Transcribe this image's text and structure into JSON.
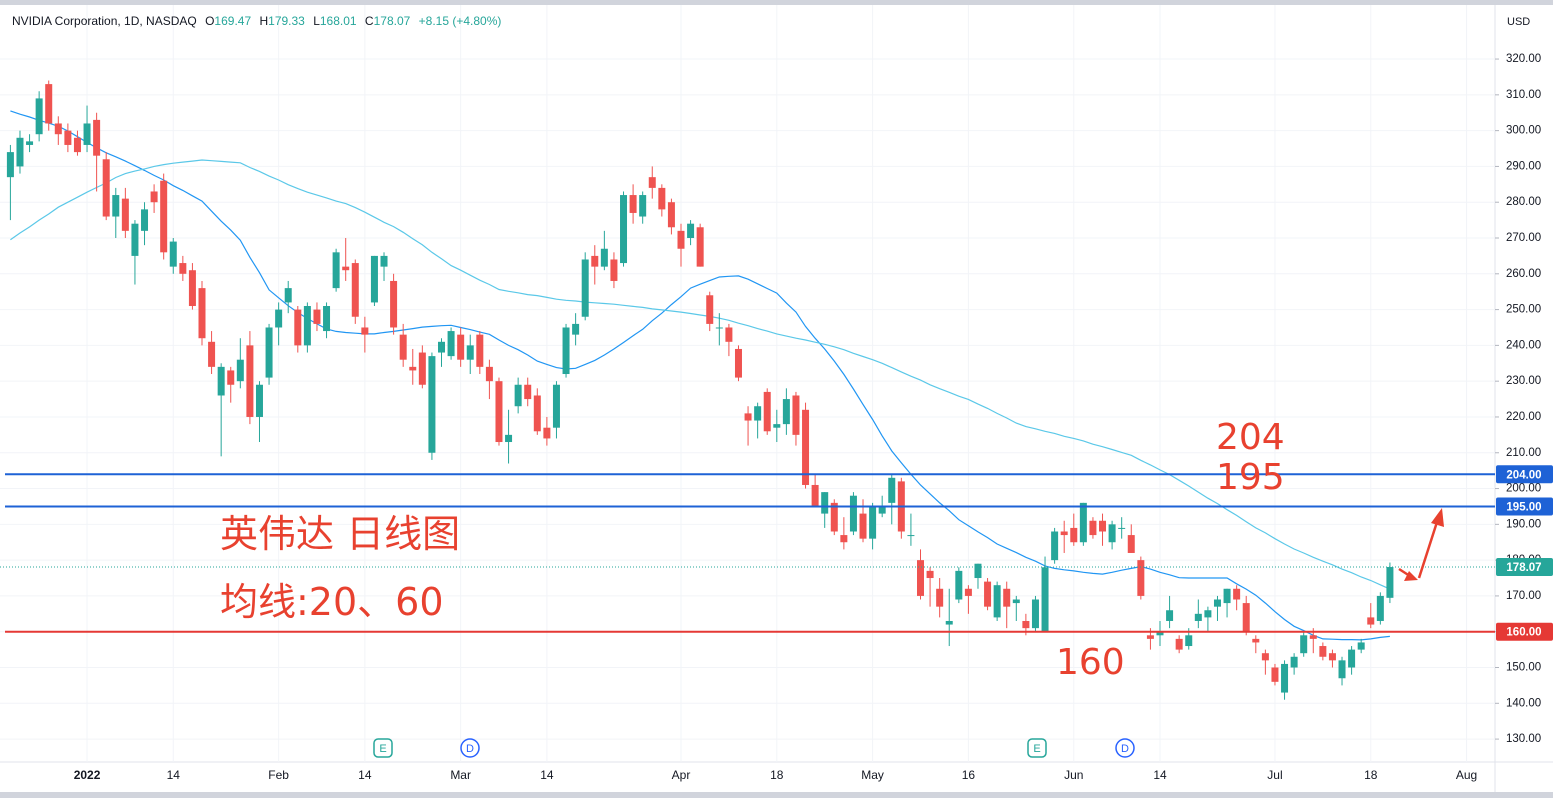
{
  "chart_data": {
    "type": "candlestick",
    "header": {
      "symbol": "NVIDIA Corporation, 1D, NASDAQ",
      "ohlc": [
        "O",
        "169.47",
        "H",
        "179.33",
        "L",
        "168.01",
        "C",
        "178.07"
      ],
      "change": "+8.15 (+4.80%)"
    },
    "currency": "USD",
    "categories": [
      null,
      null,
      null,
      null,
      null,
      null,
      null,
      null,
      "2022",
      null,
      null,
      null,
      null,
      null,
      null,
      null,
      null,
      "14",
      null,
      null,
      null,
      null,
      null,
      null,
      null,
      null,
      null,
      null,
      "Feb",
      null,
      null,
      null,
      null,
      null,
      null,
      null,
      null,
      "14",
      null,
      null,
      null,
      null,
      null,
      null,
      null,
      null,
      null,
      "Mar",
      null,
      null,
      null,
      null,
      null,
      null,
      null,
      null,
      "14",
      null,
      null,
      null,
      null,
      null,
      null,
      null,
      null,
      null,
      null,
      null,
      null,
      null,
      "Apr",
      null,
      null,
      null,
      null,
      null,
      null,
      null,
      null,
      null,
      "18",
      null,
      null,
      null,
      null,
      null,
      null,
      null,
      null,
      null,
      "May",
      null,
      null,
      null,
      null,
      null,
      null,
      null,
      null,
      null,
      "16",
      null,
      null,
      null,
      null,
      null,
      null,
      null,
      null,
      null,
      null,
      "Jun",
      null,
      null,
      null,
      null,
      null,
      null,
      null,
      null,
      "14",
      null,
      null,
      null,
      null,
      null,
      null,
      null,
      null,
      null,
      null,
      null,
      "Jul",
      null,
      null,
      null,
      null,
      null,
      null,
      null,
      null,
      null,
      "18",
      null,
      null,
      null,
      null,
      null,
      null,
      null,
      null,
      null,
      "Aug"
    ],
    "open": [
      287,
      290,
      296,
      299,
      313,
      302,
      300,
      298,
      296,
      303,
      292,
      276,
      281,
      265,
      272,
      283,
      286,
      262,
      263,
      261,
      256,
      241,
      226,
      233,
      230,
      240,
      220,
      231,
      245,
      252,
      250,
      240,
      250,
      244,
      256,
      262,
      263,
      245,
      252,
      262,
      258,
      243,
      234,
      238,
      210,
      238,
      237,
      243,
      236,
      243,
      234,
      230,
      213,
      223,
      229,
      226,
      217,
      217,
      232,
      243,
      248,
      265,
      262,
      264,
      263,
      282,
      276,
      287,
      284,
      280,
      272,
      270,
      273,
      254,
      245,
      245,
      239,
      221,
      219,
      227,
      217,
      218,
      226,
      222,
      201,
      193,
      196,
      187,
      188,
      193,
      186,
      193,
      196,
      202,
      187,
      180,
      177,
      172,
      162,
      169,
      172,
      175,
      174,
      164,
      172,
      168,
      163,
      161,
      160,
      180,
      188,
      189,
      185,
      191,
      191,
      185,
      189,
      187,
      180,
      159,
      159,
      163,
      158,
      156,
      163,
      164,
      167,
      168,
      172,
      168,
      158,
      154,
      150,
      143,
      150,
      154,
      159,
      156,
      154,
      147,
      150,
      155,
      164,
      163,
      169.47,
      null,
      null,
      null,
      null,
      null,
      null,
      null,
      null
    ],
    "high": [
      296,
      300,
      299,
      311,
      314,
      304,
      302,
      300,
      307,
      305,
      294,
      284,
      284,
      275,
      280,
      285,
      288,
      270,
      265,
      263,
      258,
      244,
      235,
      234,
      242,
      244,
      230,
      246,
      252,
      258,
      251,
      252,
      252,
      252,
      267,
      270,
      264,
      248,
      265,
      266,
      260,
      246,
      239,
      240,
      238,
      242,
      245,
      245,
      243,
      244,
      236,
      231,
      222,
      231,
      231,
      228,
      220,
      230,
      246,
      249,
      266,
      268,
      272,
      266,
      283,
      285,
      283,
      290,
      285,
      281,
      274,
      275,
      274,
      255,
      249,
      246,
      240,
      223,
      224,
      228,
      222,
      228,
      227,
      224,
      204,
      199,
      197,
      192,
      199,
      197,
      196,
      198,
      204,
      203,
      193,
      183,
      178,
      175,
      172,
      178,
      173,
      179,
      175,
      174,
      174,
      170,
      165,
      170,
      181,
      189,
      191,
      193,
      196,
      192,
      193,
      191,
      192,
      190,
      181,
      161,
      163,
      170,
      159,
      161,
      169,
      167,
      170,
      172,
      173,
      170,
      159,
      155,
      151,
      152,
      154,
      160,
      161,
      157,
      155,
      153,
      156,
      158,
      168,
      171,
      179.33,
      null,
      null,
      null,
      null,
      null,
      null,
      null,
      null
    ],
    "low": [
      275,
      288,
      294,
      297,
      300,
      296,
      294,
      293,
      294,
      283,
      275,
      270,
      270,
      257,
      268,
      277,
      264,
      260,
      258,
      250,
      240,
      232,
      209,
      224,
      228,
      218,
      213,
      229,
      240,
      249,
      238,
      238,
      244,
      242,
      255,
      258,
      246,
      238,
      251,
      258,
      243,
      234,
      229,
      228,
      208,
      234,
      236,
      234,
      232,
      232,
      225,
      212,
      207,
      221,
      223,
      215,
      212,
      214,
      231,
      240,
      247,
      257,
      261,
      256,
      262,
      274,
      274,
      281,
      276,
      271,
      262,
      268,
      262,
      244,
      240,
      237,
      230,
      212,
      214,
      215,
      213,
      215,
      212,
      200,
      195,
      189,
      187,
      183,
      187,
      185,
      183,
      192,
      190,
      186,
      184,
      169,
      167,
      164,
      156,
      168,
      165,
      172,
      166,
      163,
      161,
      163,
      159,
      160,
      160,
      179,
      182,
      184,
      184,
      186,
      184,
      183,
      186,
      182,
      169,
      155,
      156,
      161,
      154,
      155,
      161,
      160,
      163,
      164,
      166,
      159,
      154,
      148,
      145,
      141,
      148,
      153,
      154,
      152,
      150,
      145,
      148,
      154,
      161,
      162,
      168.01,
      null,
      null,
      null,
      null,
      null,
      null,
      null,
      null
    ],
    "close": [
      294,
      298,
      297,
      309,
      302,
      299,
      296,
      294,
      302,
      293,
      276,
      282,
      272,
      274,
      278,
      280,
      266,
      269,
      260,
      251,
      242,
      234,
      234,
      229,
      236,
      220,
      229,
      245,
      250,
      256,
      240,
      251,
      246,
      251,
      266,
      261,
      248,
      243,
      265,
      265,
      245,
      236,
      233,
      229,
      237,
      241,
      244,
      236,
      240,
      234,
      230,
      213,
      215,
      229,
      225,
      216,
      214,
      229,
      245,
      246,
      264,
      262,
      267,
      258,
      282,
      277,
      282,
      284,
      278,
      273,
      267,
      274,
      262,
      246,
      245,
      241,
      231,
      219,
      223,
      216,
      218,
      225,
      215,
      201,
      195,
      199,
      188,
      185,
      198,
      186,
      195,
      195,
      203,
      188,
      187,
      170,
      175,
      167,
      163,
      177,
      170,
      179,
      167,
      173,
      167,
      169,
      161,
      169,
      178,
      188,
      187,
      185,
      196,
      187,
      188,
      190,
      189,
      182,
      170,
      158,
      160,
      166,
      155,
      159,
      165,
      166,
      169,
      172,
      169,
      160,
      157,
      152,
      146,
      151,
      153,
      159,
      158,
      153,
      152,
      152,
      155,
      157,
      162,
      170,
      178.07,
      null,
      null,
      null,
      null,
      null,
      null,
      null,
      null
    ],
    "up_color": "#26a69a",
    "down_color": "#ef5350",
    "moving_averages": [
      {
        "color": "#2196f3",
        "values": [
          305.5,
          304.6,
          303.8,
          302.9,
          302.1,
          301.2,
          299.9,
          298.3,
          296.7,
          295.2,
          293.8,
          292.7,
          291.5,
          290.2,
          288.9,
          287.5,
          286.2,
          284.6,
          283.3,
          281.8,
          280.3,
          277.5,
          274.7,
          272.2,
          269.4,
          264.6,
          260.3,
          255.5,
          253.3,
          251.1,
          249.2,
          247.5,
          246,
          244.6,
          243.9,
          243.6,
          243.4,
          243.2,
          243.2,
          243.6,
          243.9,
          244.3,
          244.7,
          245.1,
          245.3,
          245.5,
          245.6,
          245,
          244.4,
          243.7,
          243.1,
          241.5,
          240,
          238.8,
          237.3,
          235.6,
          234.7,
          233.8,
          233.4,
          233.6,
          234.7,
          235.8,
          237.3,
          239,
          240.8,
          242.7,
          244.5,
          246.9,
          249,
          251.4,
          253.6,
          256,
          257.1,
          258.1,
          259.1,
          259.3,
          259.4,
          258.5,
          257.2,
          255.9,
          254.6,
          251.8,
          249.3,
          245.3,
          242,
          239,
          235.6,
          231.9,
          227.8,
          223.5,
          219.3,
          214.7,
          210.5,
          207.2,
          204,
          201,
          198.5,
          196,
          193.8,
          191.3,
          189.6,
          187.9,
          186.3,
          184.5,
          183.3,
          182.1,
          180.8,
          179.7,
          178.4,
          177.7,
          177.3,
          177,
          176.6,
          176.3,
          176.1,
          176.6,
          177.2,
          177.7,
          178.2,
          177.5,
          176.6,
          175.9,
          175.1,
          175,
          175,
          175,
          175,
          175,
          173.4,
          171.9,
          170.2,
          168,
          165.6,
          163.4,
          161.5,
          160.3,
          159,
          158,
          157.9,
          157.8,
          157.8,
          157.7,
          158,
          158.4,
          158.7,
          null,
          null,
          null,
          null,
          null,
          null,
          null,
          null
        ]
      },
      {
        "color": "#5bc8e8",
        "values": [
          269.5,
          271.4,
          273.1,
          275,
          276.7,
          278.6,
          280,
          281.4,
          282.8,
          284.1,
          285.4,
          286.9,
          288,
          288.7,
          289.3,
          290,
          290.5,
          290.9,
          291.2,
          291.5,
          291.8,
          291.6,
          291.4,
          291.2,
          291,
          289.7,
          288.6,
          287.3,
          286.2,
          284.9,
          283.8,
          282.8,
          282,
          281.2,
          280.3,
          279.6,
          278.5,
          277.2,
          275.8,
          274.4,
          273.2,
          271.6,
          269.8,
          268.1,
          266,
          264.2,
          262.3,
          261,
          259.6,
          258.2,
          257,
          255.6,
          255.1,
          254.7,
          254.2,
          253.9,
          253.4,
          252.9,
          252.6,
          252.4,
          252.1,
          251.9,
          251.7,
          251.5,
          251.2,
          250.9,
          250.6,
          250.2,
          249.9,
          249.6,
          249.3,
          248.9,
          248.5,
          248.1,
          247.6,
          247,
          246.2,
          245.5,
          244.7,
          244,
          243.2,
          242.6,
          242,
          241.5,
          240.9,
          240.3,
          239.6,
          238.8,
          237.8,
          236.9,
          236,
          235,
          233.8,
          232.6,
          231.4,
          230.3,
          229,
          227.9,
          226.9,
          225.8,
          224.9,
          223.6,
          222.4,
          221,
          219.7,
          218.3,
          217.3,
          216.7,
          216,
          215.4,
          214.6,
          214,
          213.3,
          212.4,
          211.7,
          210.9,
          210.1,
          209.3,
          207.9,
          206.6,
          205.2,
          203.9,
          202.3,
          200.7,
          199,
          197.3,
          195.8,
          194.1,
          192.5,
          190.7,
          189,
          187.6,
          186,
          184.5,
          183.1,
          182,
          180.8,
          179.7,
          178.7,
          177.5,
          176.5,
          175.3,
          174.3,
          173.1,
          171.9,
          null,
          null,
          null,
          null,
          null,
          null,
          null,
          null
        ]
      }
    ],
    "ylim": [
      123.6,
      335.1
    ],
    "yticks": [
      {
        "value": 130,
        "label": "130.00"
      },
      {
        "value": 140,
        "label": "140.00"
      },
      {
        "value": 150,
        "label": "150.00"
      },
      {
        "value": 160,
        "label": "160.00"
      },
      {
        "value": 170,
        "label": "170.00"
      },
      {
        "value": 180,
        "label": "180.00"
      },
      {
        "value": 190,
        "label": "190.00"
      },
      {
        "value": 200,
        "label": "200.00"
      },
      {
        "value": 210,
        "label": "210.00"
      },
      {
        "value": 220,
        "label": "220.00"
      },
      {
        "value": 230,
        "label": "230.00"
      },
      {
        "value": 240,
        "label": "240.00"
      },
      {
        "value": 250,
        "label": "250.00"
      },
      {
        "value": 260,
        "label": "260.00"
      },
      {
        "value": 270,
        "label": "270.00"
      },
      {
        "value": 280,
        "label": "280.00"
      },
      {
        "value": 290,
        "label": "290.00"
      },
      {
        "value": 300,
        "label": "300.00"
      },
      {
        "value": 310,
        "label": "310.00"
      },
      {
        "value": 320,
        "label": "320.00"
      }
    ],
    "grid": true,
    "levels": [
      {
        "value": 204,
        "label": "204.00",
        "color": "#1e62d6"
      },
      {
        "value": 195,
        "label": "195.00",
        "color": "#1e62d6"
      },
      {
        "value": 160,
        "label": "160.00",
        "color": "#e53935"
      }
    ],
    "last_price": {
      "value": 178.07,
      "label": "178.07",
      "color": "#26a69a"
    },
    "annotations": [
      "204",
      "195",
      "160",
      "英伟达 日线图",
      "均线:20、60"
    ],
    "events": [
      "E",
      "D",
      "E",
      "D"
    ]
  }
}
